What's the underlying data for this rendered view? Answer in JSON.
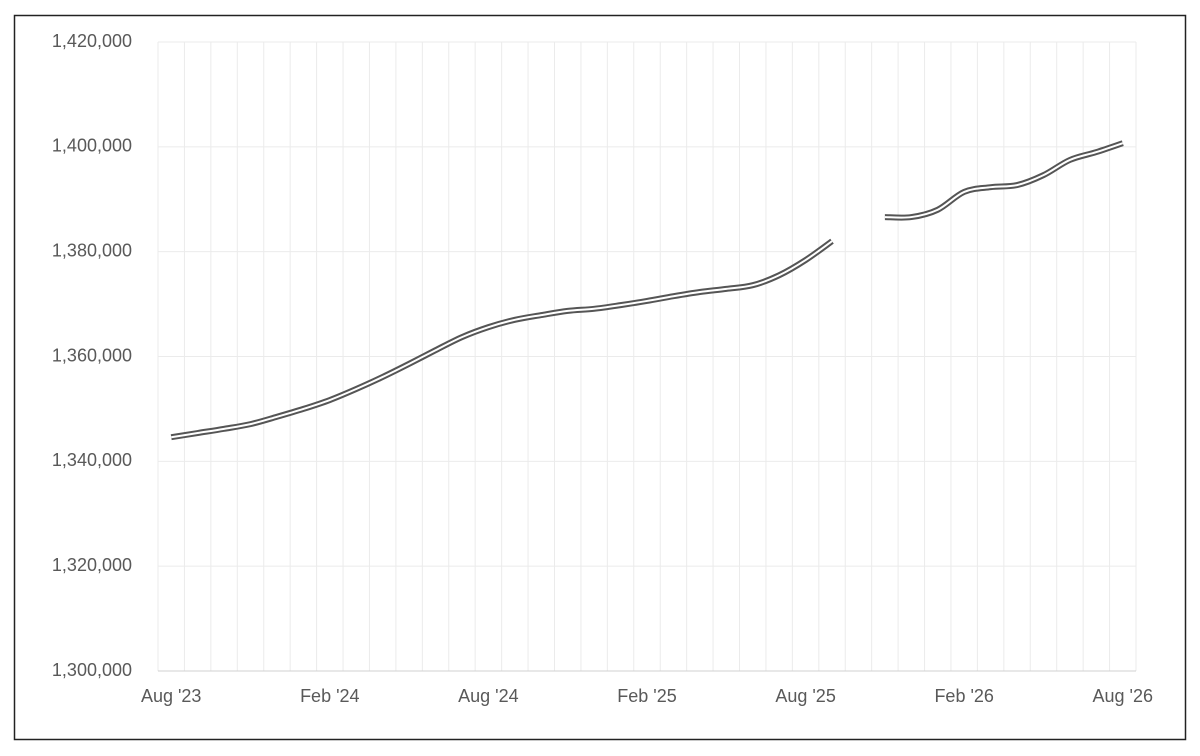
{
  "chart_data": {
    "type": "line",
    "categories": [
      "Aug  '23",
      null,
      null,
      null,
      null,
      null,
      "Feb '24",
      null,
      null,
      null,
      null,
      null,
      "Aug '24",
      null,
      null,
      null,
      null,
      null,
      "Feb '25",
      null,
      null,
      null,
      null,
      null,
      "Aug '25",
      null,
      null,
      null,
      null,
      null,
      "Feb '26",
      null,
      null,
      null,
      null,
      null,
      "Aug '26"
    ],
    "series": [
      {
        "name": null,
        "color": "#555555",
        "values": [
          1344600,
          1345400,
          1346200,
          1347100,
          1348500,
          1350000,
          1351700,
          1353800,
          1356100,
          1358600,
          1361200,
          1363700,
          1365600,
          1367000,
          1367900,
          1368700,
          1369100,
          1369800,
          1370600,
          1371500,
          1372300,
          1372900,
          1373600,
          1375500,
          1378400,
          1382000,
          null,
          1386600,
          1386600,
          1388000,
          1391400,
          1392300,
          1392700,
          1394600,
          1397500,
          1399000,
          1400700
        ]
      }
    ],
    "ylim": [
      1300000,
      1420000
    ],
    "yticks": [
      {
        "value": 1300000,
        "label": "1,300,000"
      },
      {
        "value": 1320000,
        "label": "1,320,000"
      },
      {
        "value": 1340000,
        "label": "1,340,000"
      },
      {
        "value": 1360000,
        "label": "1,360,000"
      },
      {
        "value": 1380000,
        "label": "1,380,000"
      },
      {
        "value": 1400000,
        "label": "1,400,000"
      },
      {
        "value": 1420000,
        "label": "1,420,000"
      }
    ],
    "grid": true
  }
}
